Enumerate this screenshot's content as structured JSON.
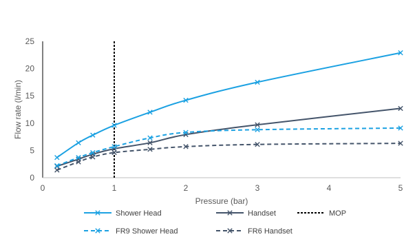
{
  "chart_data": {
    "type": "line",
    "title": "",
    "xlabel": "Pressure (bar)",
    "ylabel": "Flow rate (l/min)",
    "xlim": [
      0,
      5
    ],
    "ylim": [
      0,
      25
    ],
    "xticks": [
      "0",
      "1",
      "2",
      "3",
      "4",
      "5"
    ],
    "yticks": [
      "0",
      "5",
      "10",
      "15",
      "20",
      "25"
    ],
    "grid": false,
    "legend_position": "bottom",
    "series": [
      {
        "name": "Shower Head",
        "color": "#1BA1E2",
        "dash": "solid",
        "marker": "x",
        "x": [
          0.2,
          0.5,
          0.7,
          1.0,
          1.5,
          2.0,
          3.0,
          5.0
        ],
        "y": [
          3.7,
          6.4,
          7.8,
          9.6,
          12.0,
          14.2,
          17.5,
          22.9
        ]
      },
      {
        "name": "Handset",
        "color": "#44546A",
        "dash": "solid",
        "marker": "x",
        "x": [
          0.2,
          0.5,
          0.7,
          1.0,
          1.5,
          2.0,
          3.0,
          5.0
        ],
        "y": [
          2.1,
          3.4,
          4.3,
          5.3,
          6.4,
          7.9,
          9.7,
          12.7
        ]
      },
      {
        "name": "MOP",
        "color": "#000000",
        "dash": "dotted",
        "marker": "none",
        "x": [
          1.0,
          1.0
        ],
        "y": [
          0,
          25
        ]
      },
      {
        "name": "FR9 Shower Head",
        "color": "#1BA1E2",
        "dash": "dashed",
        "marker": "x",
        "x": [
          0.2,
          0.5,
          0.7,
          1.0,
          1.5,
          2.0,
          3.0,
          5.0
        ],
        "y": [
          2.2,
          3.7,
          4.6,
          5.7,
          7.3,
          8.3,
          8.8,
          9.1
        ]
      },
      {
        "name": "FR6 Handset",
        "color": "#44546A",
        "dash": "dashed",
        "marker": "x",
        "x": [
          0.2,
          0.5,
          0.7,
          1.0,
          1.5,
          2.0,
          3.0,
          5.0
        ],
        "y": [
          1.4,
          2.9,
          3.8,
          4.6,
          5.2,
          5.7,
          6.1,
          6.3
        ]
      }
    ]
  }
}
